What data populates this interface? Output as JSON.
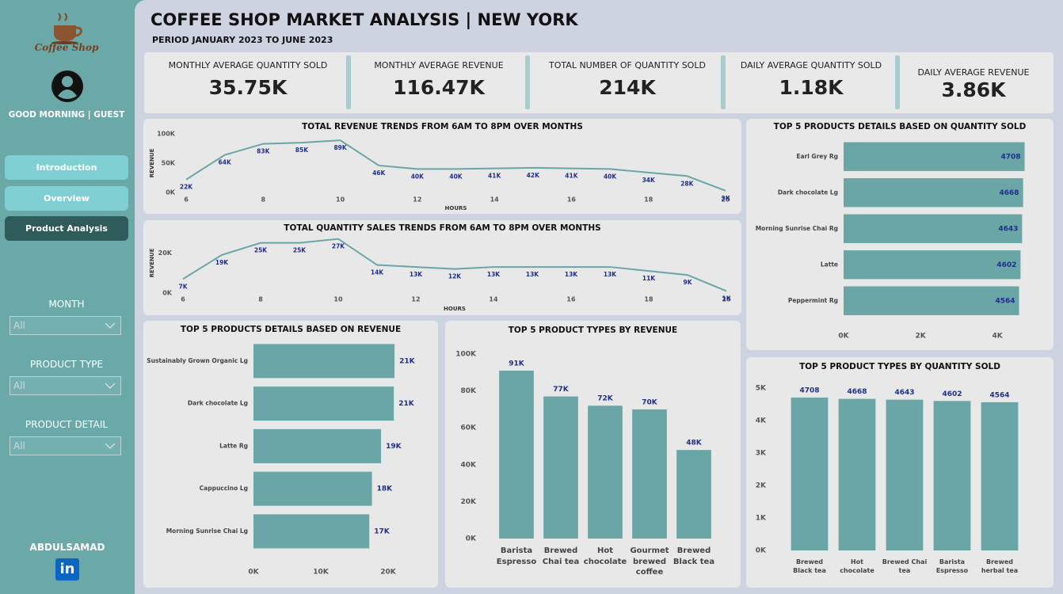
{
  "sidebar": {
    "logo": "Coffee Shop",
    "greeting": "GOOD MORNING | GUEST",
    "nav": [
      "Introduction",
      "Overview",
      "Product Analysis"
    ],
    "filters": [
      {
        "label": "MONTH",
        "value": "All"
      },
      {
        "label": "PRODUCT TYPE",
        "value": "All"
      },
      {
        "label": "PRODUCT DETAIL",
        "value": "All"
      }
    ],
    "author": "ABDULSAMAD",
    "linkedin": "in"
  },
  "header": {
    "title": "COFFEE SHOP MARKET ANALYSIS | NEW YORK",
    "subtitle": "PERIOD JANUARY 2023 TO JUNE 2023"
  },
  "kpis": [
    {
      "label": "MONTHLY AVERAGE QUANTITY SOLD",
      "value": "35.75K"
    },
    {
      "label": "MONTHLY AVERAGE REVENUE",
      "value": "116.47K"
    },
    {
      "label": "TOTAL NUMBER OF QUANTITY SOLD",
      "value": "214K"
    },
    {
      "label": "DAILY AVERAGE QUANTITY SOLD",
      "value": "1.18K"
    },
    {
      "label": "DAILY AVERAGE REVENUE",
      "value": "3.86K"
    }
  ],
  "chart_data": [
    {
      "type": "line",
      "title": "TOTAL REVENUE TRENDS FROM 6AM TO 8PM OVER MONTHS",
      "x_label": "HOURS",
      "y_label": "REVENUE",
      "x": [
        6,
        7,
        8,
        9,
        10,
        11,
        12,
        13,
        14,
        15,
        16,
        17,
        18,
        19,
        20
      ],
      "values": [
        22000,
        64000,
        83000,
        85000,
        89000,
        46000,
        40000,
        40000,
        41000,
        42000,
        41000,
        40000,
        34000,
        28000,
        3000
      ],
      "value_labels": [
        "22K",
        "64K",
        "83K",
        "85K",
        "89K",
        "46K",
        "40K",
        "40K",
        "41K",
        "42K",
        "41K",
        "40K",
        "34K",
        "28K",
        "3K"
      ],
      "color": "#6aa6a6",
      "xlim": [
        6,
        20
      ],
      "xticks": [
        6,
        8,
        10,
        12,
        14,
        16,
        18,
        20
      ],
      "ylim": [
        0,
        100000
      ],
      "yticks": [
        {
          "value": 0,
          "label": "0K"
        },
        {
          "value": 50000,
          "label": "50K"
        },
        {
          "value": 100000,
          "label": "100K"
        }
      ]
    },
    {
      "type": "line",
      "title": "TOTAL QUANTITY SALES TRENDS FROM 6AM TO 8PM OVER MONTHS",
      "x_label": "HOURS",
      "y_label": "REVENUE",
      "x": [
        6,
        7,
        8,
        9,
        10,
        11,
        12,
        13,
        14,
        15,
        16,
        17,
        18,
        19,
        20
      ],
      "values": [
        7000,
        19000,
        25000,
        25000,
        27000,
        14000,
        13000,
        12000,
        13000,
        13000,
        13000,
        13000,
        11000,
        9000,
        1000
      ],
      "value_labels": [
        "7K",
        "19K",
        "25K",
        "25K",
        "27K",
        "14K",
        "13K",
        "12K",
        "13K",
        "13K",
        "13K",
        "13K",
        "11K",
        "9K",
        "1K"
      ],
      "color": "#6aa6a6",
      "xlim": [
        6,
        20
      ],
      "xticks": [
        6,
        8,
        10,
        12,
        14,
        16,
        18,
        20
      ],
      "ylim": [
        0,
        30000
      ],
      "yticks": [
        {
          "value": 0,
          "label": "0K"
        },
        {
          "value": 20000,
          "label": "20K"
        }
      ]
    },
    {
      "type": "bar",
      "orientation": "horizontal",
      "title": "TOP 5 PRODUCTS DETAILS BASED ON QUANTITY SOLD",
      "categories": [
        "Earl Grey Rg",
        "Dark chocolate Lg",
        "Morning Sunrise Chai Rg",
        "Latte",
        "Peppermint Rg"
      ],
      "values": [
        4708,
        4668,
        4643,
        4602,
        4564
      ],
      "color": "#6aa6a6",
      "xlim": [
        0,
        4800
      ],
      "xticks": [
        {
          "value": 0,
          "label": "0K"
        },
        {
          "value": 2000,
          "label": "2K"
        },
        {
          "value": 4000,
          "label": "4K"
        }
      ]
    },
    {
      "type": "bar",
      "orientation": "horizontal",
      "title": "TOP 5 PRODUCTS DETAILS BASED ON REVENUE",
      "categories": [
        "Sustainably Grown Organic Lg",
        "Dark chocolate Lg",
        "Latte Rg",
        "Cappuccino Lg",
        "Morning Sunrise Chai Lg"
      ],
      "values": [
        20950,
        20850,
        18950,
        17600,
        17200
      ],
      "value_labels": [
        "21K",
        "21K",
        "19K",
        "18K",
        "17K"
      ],
      "color": "#6aa6a6",
      "xlim": [
        0,
        22000
      ],
      "xticks": [
        {
          "value": 0,
          "label": "0K"
        },
        {
          "value": 10000,
          "label": "10K"
        },
        {
          "value": 20000,
          "label": "20K"
        }
      ]
    },
    {
      "type": "bar",
      "orientation": "vertical",
      "title": "TOP 5 PRODUCT TYPES BY REVENUE",
      "categories": [
        "Barista Espresso",
        "Brewed Chai tea",
        "Hot chocolate",
        "Gourmet brewed coffee",
        "Brewed Black tea"
      ],
      "values": [
        91000,
        77000,
        72000,
        70000,
        48000
      ],
      "value_labels": [
        "91K",
        "77K",
        "72K",
        "70K",
        "48K"
      ],
      "color": "#6aa6a6",
      "ylim": [
        0,
        100000
      ],
      "yticks": [
        {
          "value": 0,
          "label": "0K"
        },
        {
          "value": 20000,
          "label": "20K"
        },
        {
          "value": 40000,
          "label": "40K"
        },
        {
          "value": 60000,
          "label": "60K"
        },
        {
          "value": 80000,
          "label": "80K"
        },
        {
          "value": 100000,
          "label": "100K"
        }
      ]
    },
    {
      "type": "bar",
      "orientation": "vertical",
      "title": "TOP 5 PRODUCT TYPES BY QUANTITY SOLD",
      "categories": [
        "Brewed Black tea",
        "Hot chocolate",
        "Brewed Chai tea",
        "Barista Espresso",
        "Brewed herbal tea"
      ],
      "values": [
        4708,
        4668,
        4643,
        4602,
        4564
      ],
      "color": "#6aa6a6",
      "ylim": [
        0,
        5000
      ],
      "yticks": [
        {
          "value": 0,
          "label": "0K"
        },
        {
          "value": 1000,
          "label": "1K"
        },
        {
          "value": 2000,
          "label": "2K"
        },
        {
          "value": 3000,
          "label": "3K"
        },
        {
          "value": 4000,
          "label": "4K"
        },
        {
          "value": 5000,
          "label": "5K"
        }
      ]
    }
  ]
}
